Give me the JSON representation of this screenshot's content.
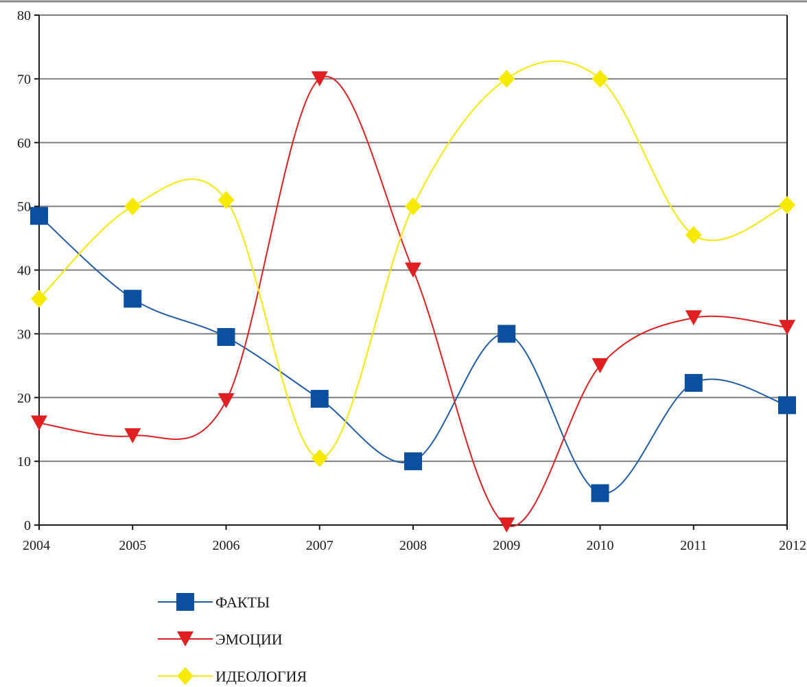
{
  "chart_data": {
    "type": "line",
    "smooth": true,
    "categories": [
      "2004",
      "2005",
      "2006",
      "2007",
      "2008",
      "2009",
      "2010",
      "2011",
      "2012"
    ],
    "y_ticks": [
      "0",
      "10",
      "20",
      "30",
      "40",
      "50",
      "60",
      "70",
      "80"
    ],
    "ylim": [
      0,
      80
    ],
    "grid": true,
    "legend_position": "bottom-center",
    "series": [
      {
        "name": "ФАКТЫ",
        "values": [
          48.5,
          35.5,
          29.5,
          19.8,
          10,
          30,
          5,
          22.3,
          18.8
        ],
        "color": "#0b4fa0",
        "line_color": "#1f5ca8",
        "marker": "square"
      },
      {
        "name": "ЭМОЦИИ",
        "values": [
          16,
          14,
          19.5,
          70,
          40,
          0,
          25,
          32.5,
          31
        ],
        "color": "#e02020",
        "line_color": "#e02020",
        "marker": "triangle-down"
      },
      {
        "name": "ИДЕОЛОГИЯ",
        "values": [
          35.5,
          50,
          51,
          10.5,
          50,
          70,
          70,
          45.5,
          50.2
        ],
        "color": "#f6ea00",
        "line_color": "#f6ea00",
        "marker": "diamond"
      }
    ]
  }
}
